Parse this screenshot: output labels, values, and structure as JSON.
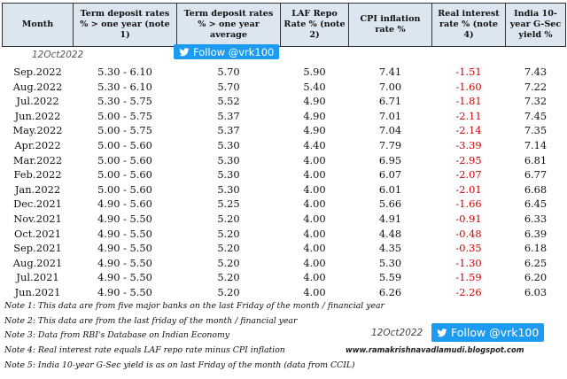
{
  "headers": [
    "Month",
    "Term deposit rates % > one year (note 1)",
    "Term deposit rates % > one year average",
    "LAF Repo Rate % (note 2)",
    "CPI inflation rate %",
    "Real interest rate % (note 4)",
    "India 10-year G-Sec yield %"
  ],
  "watermark_date": "12Oct2022",
  "follow_label": "Follow @vrk100",
  "rows": [
    {
      "month": "Sep.2022",
      "td_range": "5.30 - 6.10",
      "td_avg": "5.70",
      "repo": "5.90",
      "cpi": "7.41",
      "real": "-1.51",
      "gsec": "7.43"
    },
    {
      "month": "Aug.2022",
      "td_range": "5.30 - 6.10",
      "td_avg": "5.70",
      "repo": "5.40",
      "cpi": "7.00",
      "real": "-1.60",
      "gsec": "7.22"
    },
    {
      "month": "Jul.2022",
      "td_range": "5.30 - 5.75",
      "td_avg": "5.52",
      "repo": "4.90",
      "cpi": "6.71",
      "real": "-1.81",
      "gsec": "7.32"
    },
    {
      "month": "Jun.2022",
      "td_range": "5.00 - 5.75",
      "td_avg": "5.37",
      "repo": "4.90",
      "cpi": "7.01",
      "real": "-2.11",
      "gsec": "7.45"
    },
    {
      "month": "May.2022",
      "td_range": "5.00 - 5.75",
      "td_avg": "5.37",
      "repo": "4.90",
      "cpi": "7.04",
      "real": "-2.14",
      "gsec": "7.35"
    },
    {
      "month": "Apr.2022",
      "td_range": "5.00 - 5.60",
      "td_avg": "5.30",
      "repo": "4.40",
      "cpi": "7.79",
      "real": "-3.39",
      "gsec": "7.14"
    },
    {
      "month": "Mar.2022",
      "td_range": "5.00 - 5.60",
      "td_avg": "5.30",
      "repo": "4.00",
      "cpi": "6.95",
      "real": "-2.95",
      "gsec": "6.81"
    },
    {
      "month": "Feb.2022",
      "td_range": "5.00 - 5.60",
      "td_avg": "5.30",
      "repo": "4.00",
      "cpi": "6.07",
      "real": "-2.07",
      "gsec": "6.77"
    },
    {
      "month": "Jan.2022",
      "td_range": "5.00 - 5.60",
      "td_avg": "5.30",
      "repo": "4.00",
      "cpi": "6.01",
      "real": "-2.01",
      "gsec": "6.68"
    },
    {
      "month": "Dec.2021",
      "td_range": "4.90 - 5.60",
      "td_avg": "5.25",
      "repo": "4.00",
      "cpi": "5.66",
      "real": "-1.66",
      "gsec": "6.45"
    },
    {
      "month": "Nov.2021",
      "td_range": "4.90 - 5.50",
      "td_avg": "5.20",
      "repo": "4.00",
      "cpi": "4.91",
      "real": "-0.91",
      "gsec": "6.33"
    },
    {
      "month": "Oct.2021",
      "td_range": "4.90 - 5.50",
      "td_avg": "5.20",
      "repo": "4.00",
      "cpi": "4.48",
      "real": "-0.48",
      "gsec": "6.39"
    },
    {
      "month": "Sep.2021",
      "td_range": "4.90 - 5.50",
      "td_avg": "5.20",
      "repo": "4.00",
      "cpi": "4.35",
      "real": "-0.35",
      "gsec": "6.18"
    },
    {
      "month": "Aug.2021",
      "td_range": "4.90 - 5.50",
      "td_avg": "5.20",
      "repo": "4.00",
      "cpi": "5.30",
      "real": "-1.30",
      "gsec": "6.25"
    },
    {
      "month": "Jul.2021",
      "td_range": "4.90 - 5.50",
      "td_avg": "5.20",
      "repo": "4.00",
      "cpi": "5.59",
      "real": "-1.59",
      "gsec": "6.20"
    },
    {
      "month": "Jun.2021",
      "td_range": "4.90 - 5.50",
      "td_avg": "5.20",
      "repo": "4.00",
      "cpi": "6.26",
      "real": "-2.26",
      "gsec": "6.03"
    }
  ],
  "notes": [
    "Note 1: This data are from five major banks on the last Friday of the month / financial year",
    "Note 2: This data are from the last friday of the month / financial year",
    "Note 3: Data from RBI's Database on Indian Economy",
    "Note 4: Real interest rate equals LAF repo rate minus CPI inflation",
    "Note 5: India 10-year G-Sec yield is as on last Friday of the month (data from CCIL)"
  ],
  "bottom_date": "12Oct2022",
  "blog_url": "www.ramakrishnavadlamudi.blogspot.com",
  "colors": {
    "header_bg": "#dce6f1",
    "negative": "#d10000",
    "twitter": "#1d9bf0"
  },
  "icons": {
    "twitter": "twitter-bird-icon"
  }
}
